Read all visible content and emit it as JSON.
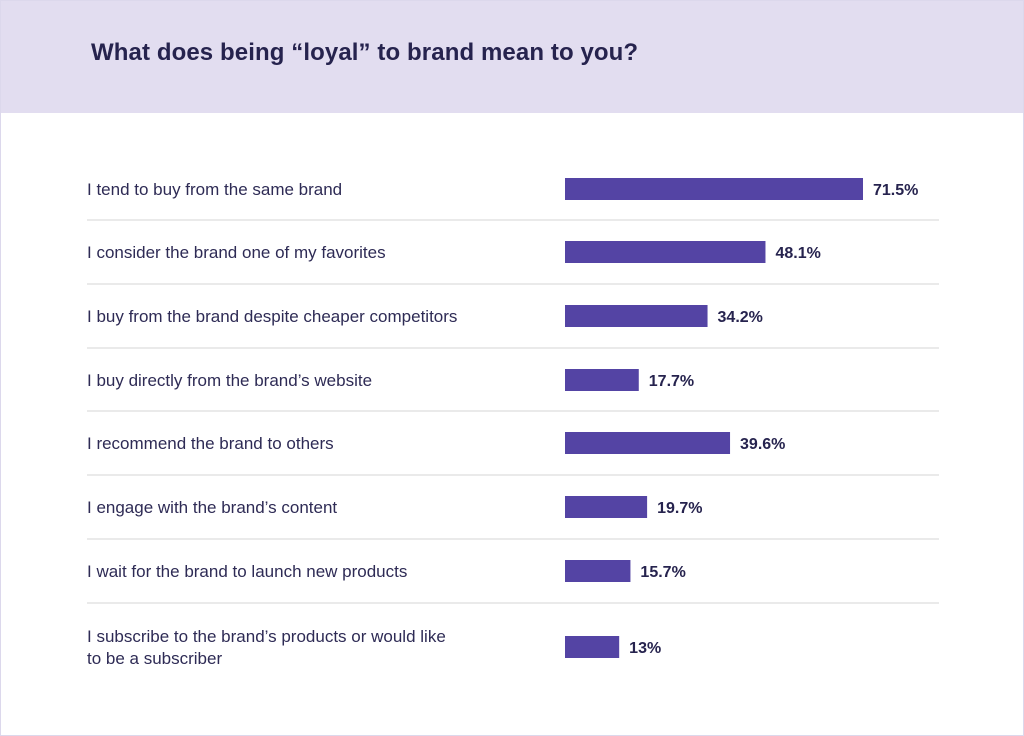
{
  "colors": {
    "header_bg": "#e2ddf0",
    "bar": "#5444a4",
    "text": "#26234e",
    "divider": "#d6d6d6"
  },
  "chart_data": {
    "type": "bar",
    "orientation": "horizontal",
    "title": "What does being “loyal” to brand mean to you?",
    "categories": [
      [
        "I tend to buy from the same brand"
      ],
      [
        "I consider the brand one of my favorites"
      ],
      [
        "I buy from the brand despite cheaper competitors"
      ],
      [
        "I buy directly from the brand’s website"
      ],
      [
        "I recommend the brand to others"
      ],
      [
        "I engage with the brand’s content"
      ],
      [
        "I wait for the brand to launch new products"
      ],
      [
        "I subscribe to the brand’s products or would like",
        "to be a subscriber"
      ]
    ],
    "values": [
      71.5,
      48.1,
      34.2,
      17.7,
      39.6,
      19.7,
      15.7,
      13
    ],
    "value_labels": [
      "71.5%",
      "48.1%",
      "34.2%",
      "17.7%",
      "39.6%",
      "19.7%",
      "15.7%",
      "13%"
    ],
    "unit": "%",
    "xlim": [
      0,
      100
    ],
    "grid": false,
    "legend": "none"
  }
}
